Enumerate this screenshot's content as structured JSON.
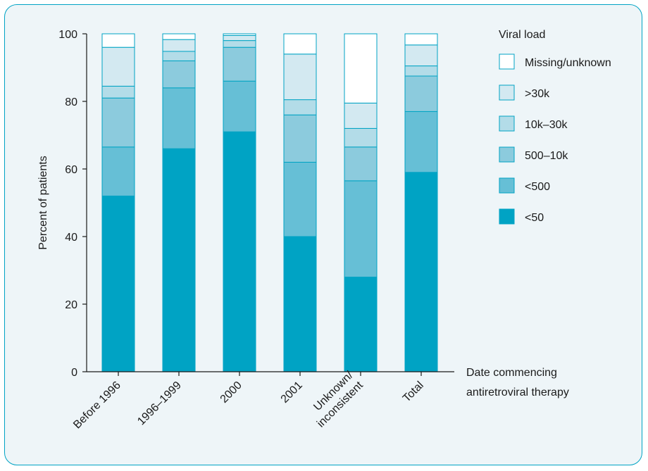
{
  "chart_data": {
    "type": "bar",
    "stacked": true,
    "categories": [
      "Before 1996",
      "1996–1999",
      "2000",
      "2001",
      "Unknown/ inconsistent",
      "Total"
    ],
    "ylabel": "Percent of patients",
    "xlabel": "Date commencing antiretroviral therapy",
    "ylim": [
      0,
      100
    ],
    "yticks": [
      0,
      20,
      40,
      60,
      80,
      100
    ],
    "legend_title": "Viral load",
    "legend_position": "right",
    "grid": false,
    "series": [
      {
        "name": "<50",
        "color": "#00a3c4",
        "values": [
          52,
          66,
          71,
          40,
          28,
          59
        ]
      },
      {
        "name": "<500",
        "color": "#66bfd6",
        "values": [
          14.5,
          18,
          15,
          22,
          28.5,
          18
        ]
      },
      {
        "name": "500–10k",
        "color": "#8ccbdd",
        "values": [
          14.5,
          8,
          10,
          14,
          10,
          10.5
        ]
      },
      {
        "name": "10k–30k",
        "color": "#b3dce8",
        "values": [
          3.5,
          2.8,
          2,
          4.5,
          5.5,
          3
        ]
      },
      {
        "name": ">30k",
        "color": "#d3e9f1",
        "values": [
          11.5,
          3.5,
          1.5,
          13.5,
          7.5,
          6.2
        ]
      },
      {
        "name": "Missing/unknown",
        "color": "#ffffff",
        "values": [
          4,
          1.7,
          0.5,
          6,
          20.5,
          3.3
        ]
      }
    ]
  }
}
